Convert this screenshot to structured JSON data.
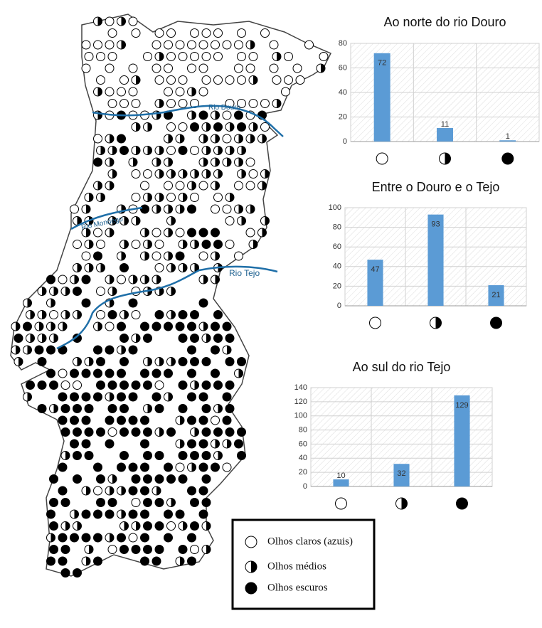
{
  "map": {
    "rivers": [
      "Rio Douro",
      "Rio Mondego",
      "Rio Tejo"
    ]
  },
  "legend": {
    "items": [
      "Olhos claros (azuis)",
      "Olhos médios",
      "Olhos escuros"
    ]
  },
  "chart_data": [
    {
      "type": "bar",
      "title": "Ao norte do rio Douro",
      "categories": [
        null,
        null,
        null
      ],
      "values": [
        72,
        11,
        1
      ],
      "color": "#5b9bd5",
      "ylim": [
        0,
        80
      ],
      "yticks": [
        0,
        20,
        40,
        60,
        80
      ],
      "grid": true
    },
    {
      "type": "bar",
      "title": "Entre o Douro e o Tejo",
      "categories": [
        null,
        null,
        null
      ],
      "values": [
        47,
        93,
        21
      ],
      "color": "#5b9bd5",
      "ylim": [
        0,
        100
      ],
      "yticks": [
        0,
        20,
        40,
        60,
        80,
        100
      ],
      "grid": true
    },
    {
      "type": "bar",
      "title": "Ao sul do rio Tejo",
      "categories": [
        null,
        null,
        null
      ],
      "values": [
        10,
        32,
        129
      ],
      "color": "#5b9bd5",
      "ylim": [
        0,
        140
      ],
      "yticks": [
        0,
        20,
        40,
        60,
        80,
        100,
        120,
        140
      ],
      "grid": true
    }
  ]
}
